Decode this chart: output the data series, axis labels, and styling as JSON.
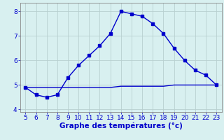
{
  "x": [
    5,
    6,
    7,
    8,
    9,
    10,
    11,
    12,
    13,
    14,
    15,
    16,
    17,
    18,
    19,
    20,
    21,
    22,
    23
  ],
  "y_temp": [
    4.9,
    4.6,
    4.5,
    4.6,
    5.3,
    5.8,
    6.2,
    6.6,
    7.1,
    8.0,
    7.9,
    7.8,
    7.5,
    7.1,
    6.5,
    6.0,
    5.6,
    5.4,
    5.0
  ],
  "y_flat": [
    4.9,
    4.9,
    4.9,
    4.9,
    4.9,
    4.9,
    4.9,
    4.9,
    4.9,
    4.95,
    4.95,
    4.95,
    4.95,
    4.95,
    5.0,
    5.0,
    5.0,
    5.0,
    5.0
  ],
  "line_color": "#0000cc",
  "bg_color": "#d8f0f0",
  "grid_color": "#b8d0d0",
  "xlabel": "Graphe des températures (°c)",
  "xlim": [
    4.5,
    23.5
  ],
  "ylim": [
    3.9,
    8.35
  ],
  "yticks": [
    4,
    5,
    6,
    7,
    8
  ],
  "xticks": [
    5,
    6,
    7,
    8,
    9,
    10,
    11,
    12,
    13,
    14,
    15,
    16,
    17,
    18,
    19,
    20,
    21,
    22,
    23
  ],
  "xlabel_fontsize": 7.5,
  "tick_fontsize": 6.5,
  "marker_size": 2.5,
  "line_width": 1.0
}
